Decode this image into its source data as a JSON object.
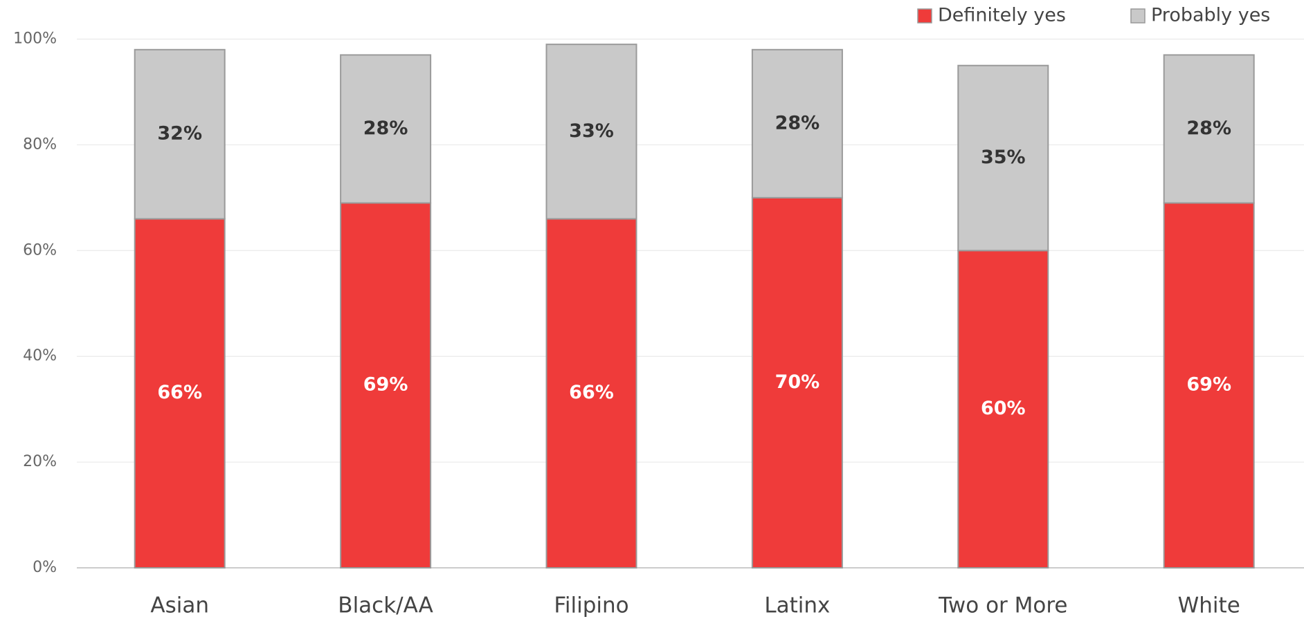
{
  "chart_data": {
    "type": "stacked_bar",
    "categories": [
      "Asian",
      "Black/AA",
      "Filipino",
      "Latinx",
      "Two or More",
      "White"
    ],
    "series": [
      {
        "name": "Definitely yes",
        "color": "#ef3b3a",
        "values": [
          66,
          69,
          66,
          70,
          60,
          69
        ],
        "value_labels": [
          "66%",
          "69%",
          "66%",
          "70%",
          "60%",
          "69%"
        ]
      },
      {
        "name": "Probably yes",
        "color": "#c9c9c9",
        "values": [
          32,
          28,
          33,
          28,
          35,
          28
        ],
        "value_labels": [
          "32%",
          "28%",
          "33%",
          "28%",
          "35%",
          "28%"
        ]
      }
    ],
    "ylim": [
      0,
      100
    ],
    "yticks": [
      {
        "value": 0,
        "label": "0%"
      },
      {
        "value": 20,
        "label": "20%"
      },
      {
        "value": 40,
        "label": "40%"
      },
      {
        "value": 60,
        "label": "60%"
      },
      {
        "value": 80,
        "label": "80%"
      },
      {
        "value": 100,
        "label": "100%"
      }
    ],
    "grid": true
  }
}
